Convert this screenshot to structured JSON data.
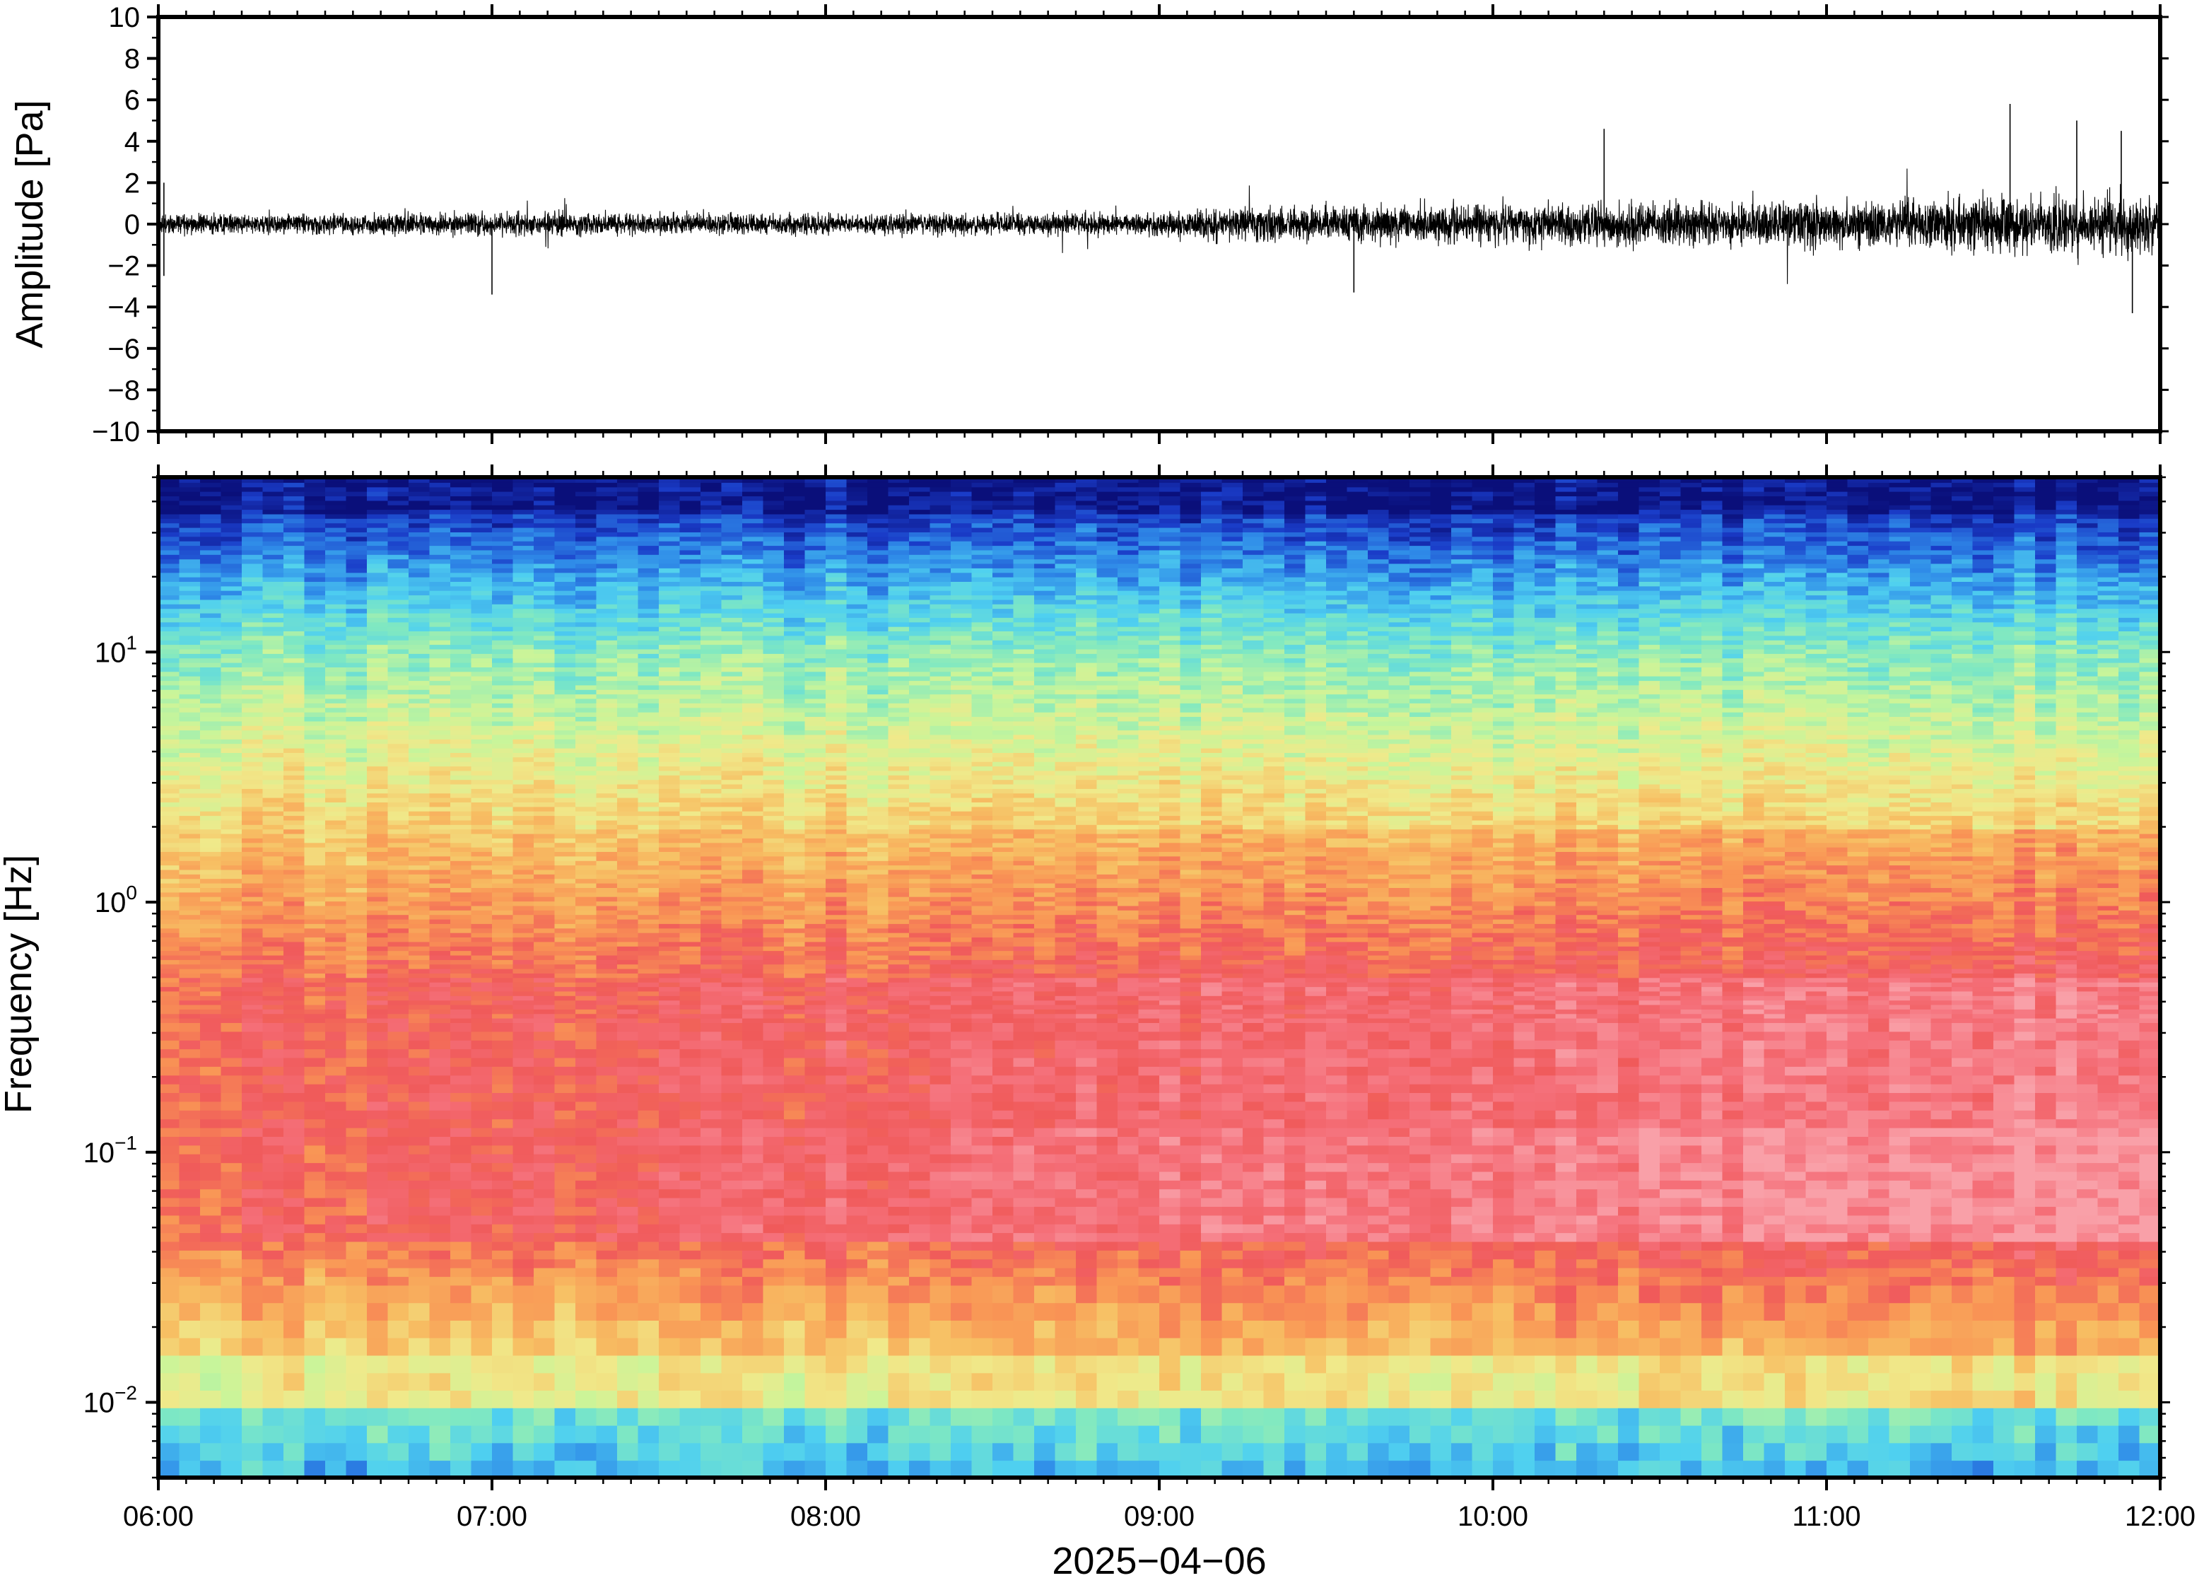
{
  "chart_data": [
    {
      "type": "line",
      "name_hint": "waveform",
      "title": "",
      "ylabel": "Amplitude [Pa]",
      "xlabel": "",
      "xlim": [
        "06:00",
        "12:00"
      ],
      "ylim": [
        -10,
        10
      ],
      "y_ticks": [
        -10,
        -8,
        -6,
        -4,
        -2,
        0,
        2,
        4,
        6,
        8,
        10
      ],
      "y_tick_labels": [
        "−10",
        "−8",
        "−6",
        "−4",
        "−2",
        "0",
        "2",
        "4",
        "6",
        "8",
        "10"
      ],
      "grid": false,
      "line_color": "#000000",
      "envelope": {
        "x": [
          "06:00",
          "07:00",
          "08:00",
          "09:00",
          "09:15",
          "10:00",
          "11:00",
          "11:30",
          "12:00"
        ],
        "amplitude": [
          0.8,
          0.9,
          0.8,
          0.9,
          1.4,
          1.6,
          1.9,
          2.2,
          2.3
        ]
      },
      "peaks": [
        {
          "x": "06:01",
          "y": 2.0
        },
        {
          "x": "06:01",
          "y": -2.5
        },
        {
          "x": "07:00",
          "y": -3.4
        },
        {
          "x": "09:35",
          "y": -3.3
        },
        {
          "x": "10:20",
          "y": 4.6
        },
        {
          "x": "11:33",
          "y": 5.8
        },
        {
          "x": "11:45",
          "y": 5.0
        },
        {
          "x": "11:53",
          "y": 4.5
        },
        {
          "x": "11:55",
          "y": -4.3
        }
      ]
    },
    {
      "type": "heatmap",
      "name_hint": "spectrogram",
      "title": "",
      "ylabel": "Frequency [Hz]",
      "xlabel": "2025−04−06",
      "xlim": [
        "06:00",
        "12:00"
      ],
      "x_ticks": [
        "06:00",
        "07:00",
        "08:00",
        "09:00",
        "10:00",
        "11:00",
        "12:00"
      ],
      "y_scale": "log",
      "ylim": [
        0.005,
        50
      ],
      "y_ticks": [
        0.01,
        0.1,
        1,
        10
      ],
      "y_tick_labels": [
        {
          "base": "10",
          "exp": "−2"
        },
        {
          "base": "10",
          "exp": "−1"
        },
        {
          "base": "10",
          "exp": "0"
        },
        {
          "base": "10",
          "exp": "1"
        }
      ],
      "colormap": [
        "#0a0f7a",
        "#1a3cc8",
        "#2f8be8",
        "#4fd0f0",
        "#7fe8c2",
        "#c8f59a",
        "#f0e98a",
        "#f7bf63",
        "#f99555",
        "#f05a5a",
        "#f5707a",
        "#f9a0a8"
      ],
      "grid": false
    }
  ]
}
